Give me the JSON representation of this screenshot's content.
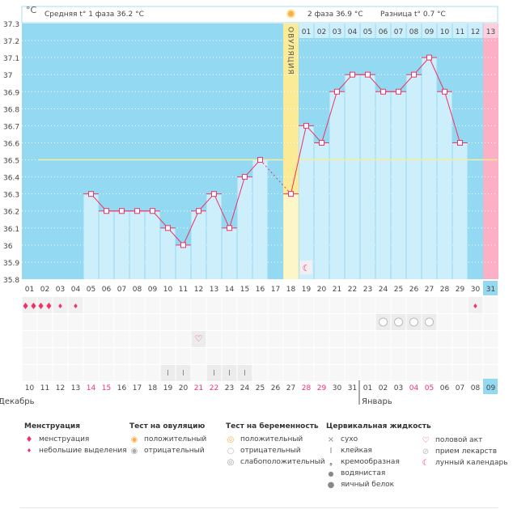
{
  "header": {
    "unit": "°C",
    "phase1": "Средняя t° 1 фаза",
    "phase1_value": "36.2 °C",
    "phase2": "2 фаза",
    "phase2_value": "36.9 °C",
    "diff": "Разница t°",
    "diff_value": "0.7 °C",
    "ovulation_label": "ОВУЛЯЦИЯ"
  },
  "colors": {
    "bg": "#93d9f2",
    "bar": "#cdeefb",
    "line": "#ee3366",
    "ovulation": "#fbeb96",
    "coverline": "#fbeb96",
    "next_period": "#fbb0c6",
    "weekend": "#ee3366"
  },
  "chart_data": {
    "type": "bar",
    "ylim": [
      35.8,
      37.3
    ],
    "yticks": [
      "37.3",
      "37.2",
      "37.1",
      "37",
      "36.9",
      "36.8",
      "36.7",
      "36.6",
      "36.5",
      "36.4",
      "36.3",
      "36.2",
      "36.1",
      "36",
      "35.9",
      "35.8"
    ],
    "cycle_days": [
      "01",
      "02",
      "03",
      "04",
      "05",
      "06",
      "07",
      "08",
      "09",
      "10",
      "11",
      "12",
      "13",
      "14",
      "15",
      "16",
      "17",
      "18",
      "19",
      "20",
      "21",
      "22",
      "23",
      "24",
      "25",
      "26",
      "27",
      "28",
      "29",
      "30",
      "31"
    ],
    "temps": [
      null,
      null,
      null,
      null,
      36.3,
      36.2,
      36.2,
      36.2,
      36.2,
      36.1,
      36.0,
      36.2,
      36.3,
      36.1,
      36.4,
      36.5,
      null,
      36.3,
      36.7,
      36.6,
      36.9,
      37.0,
      37.0,
      36.9,
      36.9,
      37.0,
      37.1,
      36.9,
      36.6,
      null,
      null
    ],
    "coverline": 36.5,
    "ovulation_day": 18,
    "next_period_day": 31,
    "today_day": 31,
    "post_ovulation_days": [
      "01",
      "02",
      "03",
      "04",
      "05",
      "06",
      "07",
      "08",
      "09",
      "10",
      "11",
      "12",
      "13"
    ]
  },
  "calendar": {
    "dates": [
      "10",
      "11",
      "12",
      "13",
      "14",
      "15",
      "16",
      "17",
      "18",
      "19",
      "20",
      "21",
      "22",
      "23",
      "24",
      "25",
      "26",
      "27",
      "28",
      "29",
      "30",
      "31",
      "01",
      "02",
      "03",
      "04",
      "05",
      "06",
      "07",
      "08",
      "09"
    ],
    "weekends": [
      "14",
      "15",
      "21",
      "22",
      "28",
      "29",
      "04",
      "05"
    ],
    "months": [
      "Декабрь",
      "Январь"
    ]
  },
  "marks": {
    "menstruation_heavy": [
      1,
      2
    ],
    "menstruation_light": [
      3,
      4,
      30
    ],
    "pregnancy_negative": [
      24,
      25,
      26,
      27
    ],
    "intercourse": [
      12
    ],
    "cervical_sticky": [
      10,
      11,
      13,
      14,
      15
    ],
    "lunar": [
      19
    ]
  },
  "legend": [
    {
      "title": "Менструация",
      "items": [
        {
          "icon": "drops-icon",
          "label": "менструация"
        },
        {
          "icon": "drop-small-icon",
          "label": "небольшие выделения"
        }
      ]
    },
    {
      "title": "Тест на овуляцию",
      "items": [
        {
          "icon": "ovulation-positive-icon",
          "label": "положительный"
        },
        {
          "icon": "ovulation-negative-icon",
          "label": "отрицательный"
        }
      ]
    },
    {
      "title": "Тест на беременность",
      "items": [
        {
          "icon": "pregnancy-positive-icon",
          "label": "положительный"
        },
        {
          "icon": "pregnancy-negative-icon",
          "label": "отрицательный"
        },
        {
          "icon": "pregnancy-weak-icon",
          "label": "слабоположительный"
        }
      ]
    },
    {
      "title": "Цервикальная жидкость",
      "items": [
        {
          "icon": "dry-icon",
          "label": "сухо"
        },
        {
          "icon": "sticky-icon",
          "label": "клейкая"
        },
        {
          "icon": "creamy-icon",
          "label": "кремообразная"
        },
        {
          "icon": "watery-icon",
          "label": "водянистая"
        },
        {
          "icon": "egg-white-icon",
          "label": "яичный белок"
        }
      ]
    },
    {
      "title": "",
      "items": [
        {
          "icon": "heart-icon",
          "label": "половой акт"
        },
        {
          "icon": "pill-icon",
          "label": "прием лекарств"
        },
        {
          "icon": "moon-icon",
          "label": "лунный календарь"
        }
      ]
    }
  ]
}
